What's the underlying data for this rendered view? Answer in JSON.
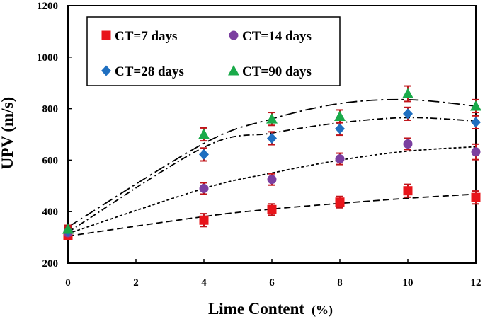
{
  "chart_data": {
    "type": "scatter",
    "title": "",
    "xlabel": "Lime Content",
    "xlabel_unit": "(%)",
    "ylabel": "UPV (m/s)",
    "xlim": [
      0,
      12
    ],
    "ylim": [
      200,
      1200
    ],
    "x_ticks": [
      0,
      2,
      4,
      6,
      8,
      10,
      12
    ],
    "y_ticks": [
      200,
      400,
      600,
      800,
      1000,
      1200
    ],
    "grid": false,
    "legend_position": "top-left",
    "x": [
      0,
      4,
      6,
      8,
      10,
      12
    ],
    "series": [
      {
        "name": "CT=7 days",
        "marker": "square",
        "color": "#e8141a",
        "trend_style": "dashed",
        "values": [
          308,
          367,
          408,
          437,
          481,
          455
        ],
        "errors": [
          15,
          25,
          22,
          22,
          25,
          25
        ],
        "trend": [
          305,
          381,
          410,
          432,
          452,
          468
        ]
      },
      {
        "name": "CT=14 days",
        "marker": "circle",
        "color": "#7b3fa0",
        "trend_style": "dotted",
        "values": [
          318,
          490,
          525,
          605,
          663,
          632
        ],
        "errors": [
          15,
          22,
          22,
          22,
          22,
          30
        ],
        "trend": [
          315,
          490,
          550,
          600,
          635,
          652
        ]
      },
      {
        "name": "CT=28 days",
        "marker": "diamond",
        "color": "#1f6fc0",
        "trend_style": "dash-dot",
        "values": [
          325,
          622,
          685,
          722,
          780,
          747
        ],
        "errors": [
          15,
          25,
          25,
          25,
          25,
          25
        ],
        "trend": [
          320,
          650,
          705,
          745,
          765,
          752
        ]
      },
      {
        "name": "CT=90 days",
        "marker": "triangle",
        "color": "#1aaa4a",
        "trend_style": "long-dash-dot",
        "values": [
          332,
          700,
          760,
          770,
          858,
          810
        ],
        "errors": [
          15,
          25,
          25,
          25,
          30,
          25
        ],
        "trend": [
          340,
          665,
          760,
          820,
          835,
          810
        ]
      }
    ],
    "error_bar_color": "#c0141a"
  }
}
